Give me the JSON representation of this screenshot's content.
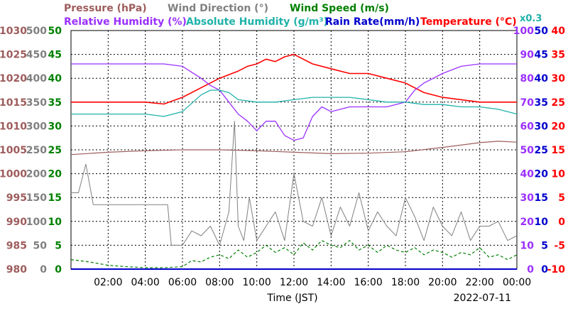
{
  "colors": {
    "pressure": "#9e5c5c",
    "wind_direction": "#808080",
    "wind_speed": "#008000",
    "humidity": "#9b30ff",
    "abs_humidity": "#20b2aa",
    "rain": "#0000cd",
    "temperature": "#ff0000",
    "multiplier": "#20b2aa",
    "rain_axis": "#0000cd"
  },
  "chart_data": {
    "type": "line",
    "title_row1": {
      "pressure": "Pressure (hPa)",
      "wind_direction": "Wind Direction (°)",
      "wind_speed": "Wind Speed (m/s)"
    },
    "title_row2": {
      "humidity": "Relative Humidity (%)",
      "abs_humidity": "Absolute Humidity (g/m³)",
      "rain": "Rain Rate(mm/h)",
      "temperature": "Temperature (°C)"
    },
    "multiplier_label": "x0.3",
    "xlabel": "Time (JST)",
    "date": "2022-07-11",
    "x_ticks": [
      "02:00",
      "04:00",
      "06:00",
      "08:00",
      "10:00",
      "12:00",
      "14:00",
      "16:00",
      "18:00",
      "20:00",
      "22:00",
      "00:00"
    ],
    "xlim_hours": [
      0,
      24
    ],
    "grid": true,
    "axes": {
      "pressure": {
        "ticks": [
          "1030",
          "1025",
          "1020",
          "1015",
          "1010",
          "1005",
          "1000",
          "995",
          "990",
          "985",
          "980"
        ],
        "ylim": [
          980,
          1030
        ]
      },
      "wind_direction": {
        "ticks": [
          "500",
          "450",
          "400",
          "350",
          "300",
          "250",
          "200",
          "150",
          "100",
          "50",
          "0"
        ],
        "ylim": [
          0,
          500
        ]
      },
      "wind_speed": {
        "ticks": [
          "50",
          "45",
          "40",
          "35",
          "30",
          "25",
          "20",
          "15",
          "10",
          "5",
          "0"
        ],
        "ylim": [
          0,
          50
        ]
      },
      "humidity": {
        "ticks": [
          "100",
          "90",
          "80",
          "70",
          "60",
          "50",
          "40",
          "30",
          "20",
          "10",
          "0"
        ],
        "ylim": [
          0,
          100
        ]
      },
      "rain": {
        "ticks": [
          "50",
          "45",
          "40",
          "35",
          "30",
          "25",
          "20",
          "15",
          "10",
          "5",
          "0"
        ],
        "ylim": [
          0,
          50
        ]
      },
      "temperature": {
        "ticks": [
          "40",
          "35",
          "30",
          "25",
          "20",
          "15",
          "10",
          "5",
          "0",
          "-5",
          "-10"
        ],
        "ylim": [
          -10,
          40
        ]
      }
    },
    "series": [
      {
        "key": "temperature",
        "axis": "temperature",
        "x": [
          0,
          2,
          4,
          5,
          6,
          7,
          8,
          9,
          9.5,
          10,
          10.5,
          11,
          11.5,
          12,
          12.5,
          13,
          14,
          15,
          16,
          17,
          18,
          19,
          20,
          21,
          22,
          23,
          24
        ],
        "y": [
          25,
          25,
          25,
          24.6,
          26,
          28,
          30,
          31.5,
          32.5,
          33,
          34,
          33.5,
          34.5,
          35,
          34,
          33,
          32,
          31,
          31,
          30,
          29,
          27,
          26,
          25.5,
          25,
          25,
          25
        ]
      },
      {
        "key": "humidity",
        "axis": "humidity",
        "x": [
          0,
          2,
          4,
          5,
          6,
          7,
          7.5,
          8,
          8.5,
          9,
          9.5,
          10,
          10.5,
          11,
          11.5,
          12,
          12.5,
          13,
          13.5,
          14,
          15,
          16,
          17,
          18,
          18.5,
          19,
          20,
          21,
          22,
          23,
          24
        ],
        "y": [
          86,
          86,
          86,
          86,
          85,
          80,
          77,
          75,
          70,
          65,
          62,
          58,
          62,
          62,
          56,
          54,
          55,
          64,
          68,
          66,
          68,
          68,
          68,
          70,
          75,
          78,
          82,
          85,
          86,
          86,
          86
        ]
      },
      {
        "key": "abs_humidity",
        "axis": "humidity",
        "x": [
          0,
          2,
          4,
          5,
          6,
          7,
          7.5,
          8,
          8.5,
          9,
          10,
          11,
          12,
          13,
          14,
          15,
          16,
          17,
          18,
          19,
          20,
          21,
          22,
          23,
          24
        ],
        "y": [
          65,
          65,
          65,
          64,
          66,
          73,
          75,
          75,
          74,
          71,
          70,
          70,
          71,
          72,
          72,
          72,
          71,
          70,
          70,
          69,
          69,
          68,
          68,
          67,
          65
        ]
      },
      {
        "key": "pressure",
        "axis": "pressure",
        "x": [
          0,
          2,
          4,
          6,
          8,
          10,
          12,
          14,
          16,
          18,
          20,
          22,
          23,
          24
        ],
        "y": [
          1004,
          1004.5,
          1004.8,
          1005,
          1005,
          1004.8,
          1004.5,
          1004.2,
          1004.3,
          1004.6,
          1005.5,
          1006.5,
          1006.8,
          1006.6
        ]
      },
      {
        "key": "wind_direction",
        "axis": "wind_direction",
        "x": [
          0,
          0.4,
          0.8,
          1.2,
          1.3,
          1.5,
          2,
          3,
          4,
          5.2,
          5.4,
          6,
          6.5,
          7,
          7.5,
          8,
          8.5,
          8.8,
          9,
          9.3,
          9.6,
          10,
          10.5,
          11,
          11.5,
          12,
          12.5,
          13,
          13.5,
          14,
          14.5,
          15,
          15.5,
          16,
          16.5,
          17,
          17.5,
          18,
          18.5,
          19,
          19.5,
          20,
          20.5,
          21,
          21.5,
          22,
          22.5,
          23,
          23.5,
          24
        ],
        "y": [
          160,
          160,
          220,
          135,
          135,
          135,
          135,
          135,
          135,
          135,
          50,
          50,
          80,
          70,
          90,
          50,
          120,
          310,
          90,
          60,
          150,
          60,
          90,
          120,
          60,
          200,
          100,
          90,
          150,
          70,
          130,
          90,
          160,
          80,
          120,
          90,
          70,
          150,
          110,
          60,
          130,
          90,
          70,
          120,
          60,
          90,
          90,
          100,
          60,
          70
        ]
      },
      {
        "key": "wind_speed",
        "axis": "wind_speed",
        "x": [
          0,
          1,
          2,
          3,
          4,
          5,
          6,
          6.5,
          7,
          7.5,
          8,
          8.5,
          9,
          9.5,
          10,
          10.5,
          11,
          11.5,
          12,
          12.5,
          13,
          13.5,
          14,
          14.5,
          15,
          15.5,
          16,
          16.5,
          17,
          17.5,
          18,
          18.5,
          19,
          19.5,
          20,
          20.5,
          21,
          21.5,
          22,
          22.5,
          23,
          23.5,
          24
        ],
        "y": [
          2,
          1.5,
          0.8,
          0.5,
          0.3,
          0.3,
          0.5,
          1.8,
          1.5,
          2.5,
          3,
          2.2,
          4,
          2.5,
          3.5,
          5,
          3.5,
          4.5,
          3,
          5.5,
          4,
          6,
          5,
          4.5,
          6,
          4,
          5,
          3.5,
          5,
          4,
          3.5,
          4.5,
          3,
          4,
          3.5,
          2.5,
          3.5,
          3,
          4.5,
          2.5,
          3,
          2,
          3
        ]
      },
      {
        "key": "rain",
        "axis": "rain",
        "x": [
          0,
          24
        ],
        "y": [
          0,
          0
        ]
      }
    ]
  }
}
